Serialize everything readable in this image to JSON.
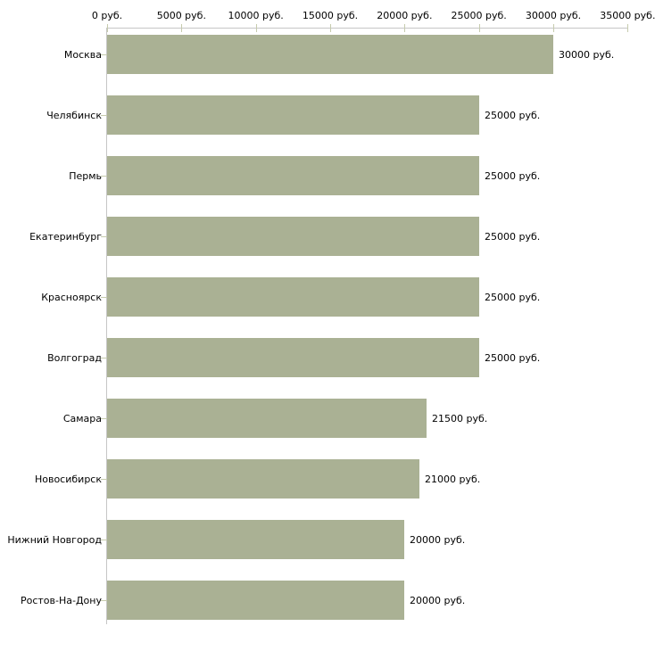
{
  "chart_data": {
    "type": "bar",
    "orientation": "horizontal",
    "title": "",
    "xlabel": "",
    "ylabel": "",
    "unit_suffix": " руб.",
    "xlim": [
      0,
      35000
    ],
    "grid": false,
    "legend": false,
    "x_tick_values": [
      0,
      5000,
      10000,
      15000,
      20000,
      25000,
      30000,
      35000
    ],
    "x_tick_labels": [
      "0 руб.",
      "5000 руб.",
      "10000 руб.",
      "15000 руб.",
      "20000 руб.",
      "25000 руб.",
      "30000 руб.",
      "35000 руб."
    ],
    "categories": [
      "Москва",
      "Челябинск",
      "Пермь",
      "Екатеринбург",
      "Красноярск",
      "Волгоград",
      "Самара",
      "Новосибирск",
      "Нижний Новгород",
      "Ростов-На-Дону"
    ],
    "values": [
      30000,
      25000,
      25000,
      25000,
      25000,
      25000,
      21500,
      21000,
      20000,
      20000
    ],
    "bar_labels": [
      "30000 руб.",
      "25000 руб.",
      "25000 руб.",
      "25000 руб.",
      "25000 руб.",
      "25000 руб.",
      "21500 руб.",
      "21000 руб.",
      "20000 руб.",
      "20000 руб."
    ]
  },
  "colors": {
    "bar": "#aab194",
    "axis_line": "#c6c6c6",
    "tick": "#c6cbae",
    "text": "#000000",
    "background": "#ffffff"
  }
}
